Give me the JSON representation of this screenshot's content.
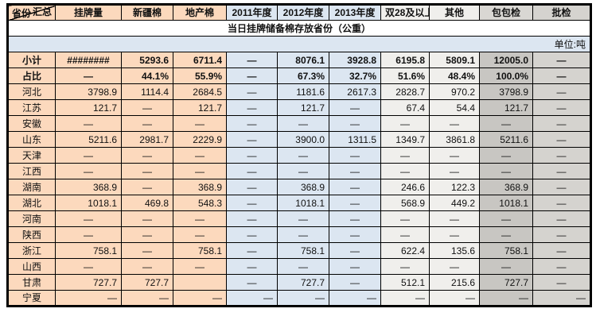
{
  "table": {
    "title": "当日挂牌储备棉存放省份（公重）",
    "unit": "单位:吨",
    "corner_top": "汇总",
    "corner_bottom": "省份",
    "columns": [
      "挂牌量",
      "新疆棉",
      "地产棉",
      "2011年度",
      "2012年度",
      "2013年度",
      "双28及以上",
      "其他",
      "包包检",
      "批检"
    ],
    "rows": [
      {
        "label": "小计",
        "bold": true,
        "values": [
          "########",
          "5293.6",
          "6711.4",
          "—",
          "8076.1",
          "3928.8",
          "6195.8",
          "5809.1",
          "12005.0",
          "—"
        ]
      },
      {
        "label": "占比",
        "bold": true,
        "values": [
          "—",
          "44.1%",
          "55.9%",
          "—",
          "67.3%",
          "32.7%",
          "51.6%",
          "48.4%",
          "100.0%",
          "—"
        ]
      },
      {
        "label": "河北",
        "bold": false,
        "values": [
          "3798.9",
          "1114.4",
          "2684.5",
          "—",
          "1181.6",
          "2617.3",
          "2828.7",
          "970.2",
          "3798.9",
          "—"
        ]
      },
      {
        "label": "江苏",
        "bold": false,
        "values": [
          "121.7",
          "—",
          "121.7",
          "—",
          "121.7",
          "—",
          "67.4",
          "54.4",
          "121.7",
          "—"
        ]
      },
      {
        "label": "安徽",
        "bold": false,
        "values": [
          "—",
          "—",
          "—",
          "—",
          "—",
          "—",
          "—",
          "—",
          "—",
          "—"
        ]
      },
      {
        "label": "山东",
        "bold": false,
        "values": [
          "5211.6",
          "2981.7",
          "2229.9",
          "—",
          "3900.0",
          "1311.5",
          "1349.7",
          "3861.8",
          "5211.6",
          "—"
        ]
      },
      {
        "label": "天津",
        "bold": false,
        "values": [
          "—",
          "—",
          "—",
          "—",
          "—",
          "—",
          "—",
          "—",
          "—",
          "—"
        ]
      },
      {
        "label": "江西",
        "bold": false,
        "values": [
          "—",
          "—",
          "—",
          "—",
          "—",
          "—",
          "—",
          "—",
          "—",
          "—"
        ]
      },
      {
        "label": "湖南",
        "bold": false,
        "values": [
          "368.9",
          "—",
          "368.9",
          "—",
          "368.9",
          "—",
          "246.6",
          "122.3",
          "368.9",
          "—"
        ]
      },
      {
        "label": "湖北",
        "bold": false,
        "values": [
          "1018.1",
          "469.8",
          "548.3",
          "—",
          "1018.1",
          "—",
          "568.9",
          "449.2",
          "1018.1",
          "—"
        ]
      },
      {
        "label": "河南",
        "bold": false,
        "values": [
          "—",
          "—",
          "—",
          "—",
          "—",
          "—",
          "—",
          "—",
          "—",
          "—"
        ]
      },
      {
        "label": "陕西",
        "bold": false,
        "values": [
          "—",
          "—",
          "—",
          "—",
          "—",
          "—",
          "—",
          "—",
          "—",
          "—"
        ]
      },
      {
        "label": "浙江",
        "bold": false,
        "values": [
          "758.1",
          "—",
          "758.1",
          "—",
          "758.1",
          "—",
          "622.4",
          "135.6",
          "758.1",
          "—"
        ]
      },
      {
        "label": "山西",
        "bold": false,
        "values": [
          "—",
          "—",
          "—",
          "—",
          "—",
          "—",
          "—",
          "—",
          "—",
          "—"
        ]
      },
      {
        "label": "甘肃",
        "bold": false,
        "values": [
          "727.7",
          "727.7",
          "",
          "—",
          "727.7",
          "—",
          "512.1",
          "215.6",
          "727.7",
          "—"
        ]
      },
      {
        "label": "宁夏",
        "bold": false,
        "dash_right": true,
        "values": [
          "—",
          "—",
          "—",
          "—",
          "—",
          "—",
          "—",
          "—",
          "—",
          "—"
        ]
      }
    ],
    "colors": {
      "peach": "#fcd9bd",
      "blue": "#dce6f1",
      "gray_light": "#f0efec",
      "gray_dark": "#c8c6c2",
      "gray_header": "#d9d7d3",
      "gray_mid": "#d5d3cf"
    }
  }
}
